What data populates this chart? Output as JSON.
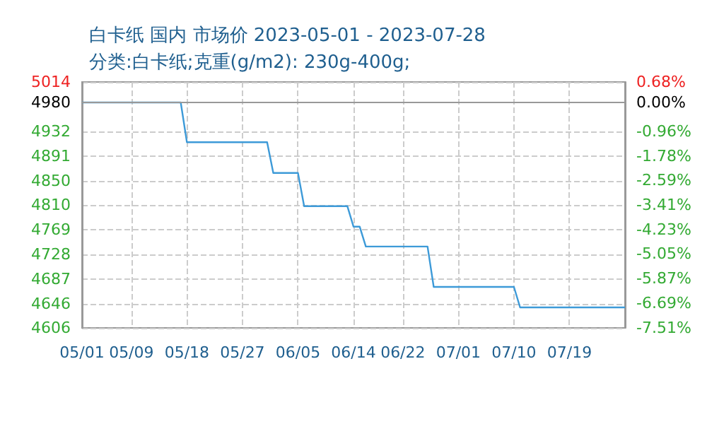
{
  "chart_data": {
    "type": "line",
    "title": "白卡纸 国内 市场价 2023-05-01 - 2023-07-28",
    "subtitle": "分类:白卡纸;克重(g/m2): 230g-400g;",
    "x": [
      "2023-05-01",
      "2023-05-17",
      "2023-05-18",
      "2023-05-31",
      "2023-06-01",
      "2023-06-05",
      "2023-06-06",
      "2023-06-13",
      "2023-06-14",
      "2023-06-15",
      "2023-06-16",
      "2023-06-26",
      "2023-06-27",
      "2023-07-10",
      "2023-07-11",
      "2023-07-28"
    ],
    "series": [
      {
        "color": "#3d9ad8",
        "values": [
          4980,
          4980,
          4914,
          4914,
          4863,
          4863,
          4808,
          4808,
          4774,
          4774,
          4741,
          4741,
          4674,
          4674,
          4640,
          4640
        ]
      }
    ],
    "xlim": [
      "2023-05-01",
      "2023-07-28"
    ],
    "xticks": [
      {
        "value": "2023-05-01",
        "label": "05/01"
      },
      {
        "value": "2023-05-09",
        "label": "05/09"
      },
      {
        "value": "2023-05-18",
        "label": "05/18"
      },
      {
        "value": "2023-05-27",
        "label": "05/27"
      },
      {
        "value": "2023-06-05",
        "label": "06/05"
      },
      {
        "value": "2023-06-14",
        "label": "06/14"
      },
      {
        "value": "2023-06-22",
        "label": "06/22"
      },
      {
        "value": "2023-07-01",
        "label": "07/01"
      },
      {
        "value": "2023-07-10",
        "label": "07/10"
      },
      {
        "value": "2023-07-19",
        "label": "07/19"
      }
    ],
    "ylim": [
      4606,
      5014
    ],
    "yticks": [
      4606,
      4646,
      4687,
      4728,
      4769,
      4810,
      4850,
      4891,
      4932,
      4980,
      5014
    ],
    "y2lim": [
      -7.51,
      0.68
    ],
    "y2ticks": [
      {
        "value": -7.51,
        "label": "-7.51%"
      },
      {
        "value": -6.69,
        "label": "-6.69%"
      },
      {
        "value": -5.87,
        "label": "-5.87%"
      },
      {
        "value": -5.05,
        "label": "-5.05%"
      },
      {
        "value": -4.23,
        "label": "-4.23%"
      },
      {
        "value": -3.41,
        "label": "-3.41%"
      },
      {
        "value": -2.59,
        "label": "-2.59%"
      },
      {
        "value": -1.78,
        "label": "-1.78%"
      },
      {
        "value": -0.96,
        "label": "-0.96%"
      },
      {
        "value": 0,
        "label": "0.00%"
      },
      {
        "value": 0.68,
        "label": "0.68%"
      }
    ],
    "ref_lines": [
      {
        "axis": "y",
        "value": 4980,
        "color": "#999999"
      }
    ],
    "grid": true,
    "marker": "none",
    "line_style": "solid"
  }
}
